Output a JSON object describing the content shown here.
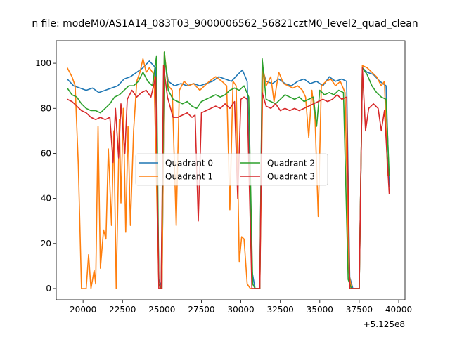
{
  "chart_data": {
    "type": "line",
    "title": "n file: modeM0/AS1A14_083T03_9000006562_56821cztM0_level2_quad_clean",
    "xlabel": "",
    "ylabel": "",
    "x_offset_label": "+5.125e8",
    "xlim": [
      18300,
      40400
    ],
    "ylim": [
      -5,
      110
    ],
    "xticks": [
      20000,
      22500,
      25000,
      27500,
      30000,
      32500,
      35000,
      37500,
      40000
    ],
    "yticks": [
      0,
      20,
      40,
      60,
      80,
      100
    ],
    "grid": false,
    "legend": {
      "placement": "center",
      "columns": 2
    },
    "series": [
      {
        "name": "Quadrant 0",
        "color": "#1f77b4",
        "points": [
          [
            19000,
            93
          ],
          [
            19400,
            90
          ],
          [
            19800,
            89
          ],
          [
            20200,
            88
          ],
          [
            20600,
            89
          ],
          [
            21000,
            87
          ],
          [
            21400,
            88
          ],
          [
            21800,
            89
          ],
          [
            22200,
            90
          ],
          [
            22600,
            93
          ],
          [
            23000,
            94
          ],
          [
            23400,
            96
          ],
          [
            23800,
            98
          ],
          [
            24200,
            101
          ],
          [
            24600,
            98
          ],
          [
            24800,
            4
          ],
          [
            25000,
            0
          ],
          [
            25150,
            103
          ],
          [
            25400,
            92
          ],
          [
            25800,
            90
          ],
          [
            26200,
            91
          ],
          [
            26600,
            90
          ],
          [
            27000,
            91
          ],
          [
            27400,
            90
          ],
          [
            27800,
            91
          ],
          [
            28200,
            92
          ],
          [
            28600,
            94
          ],
          [
            29000,
            93
          ],
          [
            29400,
            92
          ],
          [
            29800,
            95
          ],
          [
            30100,
            97
          ],
          [
            30400,
            92
          ],
          [
            30700,
            8
          ],
          [
            30900,
            0
          ],
          [
            31200,
            0
          ],
          [
            31350,
            98
          ],
          [
            31600,
            92
          ],
          [
            32000,
            91
          ],
          [
            32400,
            93
          ],
          [
            32800,
            91
          ],
          [
            33200,
            90
          ],
          [
            33600,
            92
          ],
          [
            34000,
            93
          ],
          [
            34400,
            91
          ],
          [
            34800,
            92
          ],
          [
            35200,
            90
          ],
          [
            35600,
            94
          ],
          [
            36000,
            92
          ],
          [
            36400,
            93
          ],
          [
            36700,
            92
          ],
          [
            36900,
            5
          ],
          [
            37100,
            0
          ],
          [
            37500,
            0
          ],
          [
            37700,
            98
          ],
          [
            38000,
            96
          ],
          [
            38400,
            95
          ],
          [
            38800,
            92
          ],
          [
            39200,
            90
          ],
          [
            39400,
            45
          ]
        ]
      },
      {
        "name": "Quadrant 1",
        "color": "#ff7f0e",
        "points": [
          [
            19000,
            98
          ],
          [
            19300,
            94
          ],
          [
            19500,
            90
          ],
          [
            19700,
            55
          ],
          [
            19900,
            0
          ],
          [
            20200,
            0
          ],
          [
            20350,
            15
          ],
          [
            20500,
            0
          ],
          [
            20700,
            8
          ],
          [
            20800,
            2
          ],
          [
            20950,
            72
          ],
          [
            21100,
            9
          ],
          [
            21300,
            26
          ],
          [
            21450,
            22
          ],
          [
            21600,
            62
          ],
          [
            21800,
            28
          ],
          [
            21950,
            70
          ],
          [
            22100,
            0
          ],
          [
            22300,
            75
          ],
          [
            22400,
            38
          ],
          [
            22550,
            80
          ],
          [
            22700,
            25
          ],
          [
            22850,
            72
          ],
          [
            23000,
            28
          ],
          [
            23200,
            70
          ],
          [
            23400,
            92
          ],
          [
            23600,
            96
          ],
          [
            23800,
            102
          ],
          [
            24000,
            96
          ],
          [
            24200,
            98
          ],
          [
            24500,
            95
          ],
          [
            24800,
            2
          ],
          [
            25000,
            0
          ],
          [
            25150,
            105
          ],
          [
            25400,
            90
          ],
          [
            25650,
            88
          ],
          [
            25900,
            28
          ],
          [
            26100,
            88
          ],
          [
            26400,
            92
          ],
          [
            26700,
            90
          ],
          [
            27000,
            91
          ],
          [
            27400,
            88
          ],
          [
            27700,
            90
          ],
          [
            28000,
            92
          ],
          [
            28400,
            94
          ],
          [
            28800,
            92
          ],
          [
            29100,
            90
          ],
          [
            29300,
            35
          ],
          [
            29500,
            92
          ],
          [
            29700,
            90
          ],
          [
            29900,
            12
          ],
          [
            30050,
            23
          ],
          [
            30200,
            22
          ],
          [
            30400,
            2
          ],
          [
            30600,
            0
          ],
          [
            30900,
            0
          ],
          [
            31200,
            0
          ],
          [
            31400,
            98
          ],
          [
            31600,
            90
          ],
          [
            31900,
            94
          ],
          [
            32100,
            83
          ],
          [
            32400,
            96
          ],
          [
            32700,
            91
          ],
          [
            33000,
            90
          ],
          [
            33300,
            89
          ],
          [
            33600,
            90
          ],
          [
            33900,
            88
          ],
          [
            34100,
            85
          ],
          [
            34300,
            67
          ],
          [
            34500,
            88
          ],
          [
            34700,
            75
          ],
          [
            34900,
            32
          ],
          [
            35100,
            90
          ],
          [
            35400,
            92
          ],
          [
            35700,
            93
          ],
          [
            36000,
            90
          ],
          [
            36300,
            92
          ],
          [
            36600,
            87
          ],
          [
            36850,
            7
          ],
          [
            37000,
            0
          ],
          [
            37500,
            0
          ],
          [
            37700,
            99
          ],
          [
            38000,
            98
          ],
          [
            38300,
            96
          ],
          [
            38600,
            94
          ],
          [
            38900,
            90
          ],
          [
            39100,
            92
          ],
          [
            39300,
            50
          ]
        ]
      },
      {
        "name": "Quadrant 2",
        "color": "#2ca02c",
        "points": [
          [
            19000,
            89
          ],
          [
            19300,
            86
          ],
          [
            19600,
            85
          ],
          [
            19900,
            82
          ],
          [
            20200,
            80
          ],
          [
            20500,
            79
          ],
          [
            20800,
            79
          ],
          [
            21100,
            78
          ],
          [
            21400,
            80
          ],
          [
            21700,
            82
          ],
          [
            22000,
            85
          ],
          [
            22300,
            86
          ],
          [
            22600,
            88
          ],
          [
            22900,
            90
          ],
          [
            23200,
            90
          ],
          [
            23500,
            92
          ],
          [
            23800,
            96
          ],
          [
            24100,
            92
          ],
          [
            24400,
            90
          ],
          [
            24650,
            103
          ],
          [
            24800,
            2
          ],
          [
            24950,
            0
          ],
          [
            25150,
            105
          ],
          [
            25400,
            88
          ],
          [
            25700,
            84
          ],
          [
            26000,
            83
          ],
          [
            26300,
            82
          ],
          [
            26600,
            83
          ],
          [
            26900,
            81
          ],
          [
            27200,
            80
          ],
          [
            27500,
            83
          ],
          [
            27800,
            84
          ],
          [
            28100,
            85
          ],
          [
            28400,
            86
          ],
          [
            28700,
            85
          ],
          [
            29000,
            86
          ],
          [
            29300,
            88
          ],
          [
            29600,
            89
          ],
          [
            29900,
            88
          ],
          [
            30200,
            90
          ],
          [
            30500,
            85
          ],
          [
            30750,
            2
          ],
          [
            30900,
            0
          ],
          [
            31200,
            0
          ],
          [
            31350,
            102
          ],
          [
            31600,
            84
          ],
          [
            31900,
            83
          ],
          [
            32200,
            82
          ],
          [
            32500,
            84
          ],
          [
            32800,
            86
          ],
          [
            33100,
            85
          ],
          [
            33400,
            84
          ],
          [
            33700,
            85
          ],
          [
            34000,
            83
          ],
          [
            34300,
            84
          ],
          [
            34600,
            85
          ],
          [
            34800,
            72
          ],
          [
            35000,
            88
          ],
          [
            35300,
            86
          ],
          [
            35600,
            87
          ],
          [
            35900,
            86
          ],
          [
            36200,
            88
          ],
          [
            36500,
            87
          ],
          [
            36800,
            4
          ],
          [
            37000,
            0
          ],
          [
            37500,
            0
          ],
          [
            37700,
            98
          ],
          [
            38000,
            95
          ],
          [
            38300,
            90
          ],
          [
            38600,
            87
          ],
          [
            38900,
            85
          ],
          [
            39200,
            84
          ],
          [
            39400,
            50
          ]
        ]
      },
      {
        "name": "Quadrant 3",
        "color": "#d62728",
        "points": [
          [
            19000,
            84
          ],
          [
            19300,
            83
          ],
          [
            19600,
            81
          ],
          [
            19900,
            79
          ],
          [
            20200,
            78
          ],
          [
            20500,
            76
          ],
          [
            20800,
            75
          ],
          [
            21100,
            76
          ],
          [
            21400,
            75
          ],
          [
            21700,
            76
          ],
          [
            21900,
            56
          ],
          [
            22050,
            80
          ],
          [
            22250,
            58
          ],
          [
            22400,
            82
          ],
          [
            22650,
            60
          ],
          [
            22800,
            84
          ],
          [
            23100,
            88
          ],
          [
            23400,
            85
          ],
          [
            23700,
            87
          ],
          [
            24000,
            88
          ],
          [
            24300,
            85
          ],
          [
            24600,
            94
          ],
          [
            24800,
            0
          ],
          [
            24950,
            0
          ],
          [
            25100,
            99
          ],
          [
            25350,
            85
          ],
          [
            25700,
            76
          ],
          [
            26000,
            76
          ],
          [
            26300,
            77
          ],
          [
            26600,
            78
          ],
          [
            26900,
            76
          ],
          [
            27100,
            77
          ],
          [
            27300,
            30
          ],
          [
            27500,
            78
          ],
          [
            27800,
            79
          ],
          [
            28100,
            80
          ],
          [
            28400,
            81
          ],
          [
            28700,
            80
          ],
          [
            29000,
            82
          ],
          [
            29300,
            80
          ],
          [
            29600,
            83
          ],
          [
            29800,
            40
          ],
          [
            30000,
            84
          ],
          [
            30200,
            85
          ],
          [
            30400,
            84
          ],
          [
            30700,
            0
          ],
          [
            31200,
            0
          ],
          [
            31350,
            87
          ],
          [
            31600,
            81
          ],
          [
            31900,
            80
          ],
          [
            32200,
            82
          ],
          [
            32500,
            79
          ],
          [
            32800,
            80
          ],
          [
            33100,
            79
          ],
          [
            33400,
            80
          ],
          [
            33700,
            79
          ],
          [
            34000,
            80
          ],
          [
            34300,
            81
          ],
          [
            34600,
            82
          ],
          [
            34900,
            83
          ],
          [
            35200,
            84
          ],
          [
            35500,
            83
          ],
          [
            35800,
            84
          ],
          [
            36100,
            86
          ],
          [
            36400,
            84
          ],
          [
            36700,
            85
          ],
          [
            36900,
            0
          ],
          [
            37500,
            0
          ],
          [
            37700,
            98
          ],
          [
            37900,
            70
          ],
          [
            38100,
            80
          ],
          [
            38400,
            82
          ],
          [
            38700,
            80
          ],
          [
            38900,
            70
          ],
          [
            39100,
            79
          ],
          [
            39400,
            42
          ]
        ]
      }
    ]
  }
}
